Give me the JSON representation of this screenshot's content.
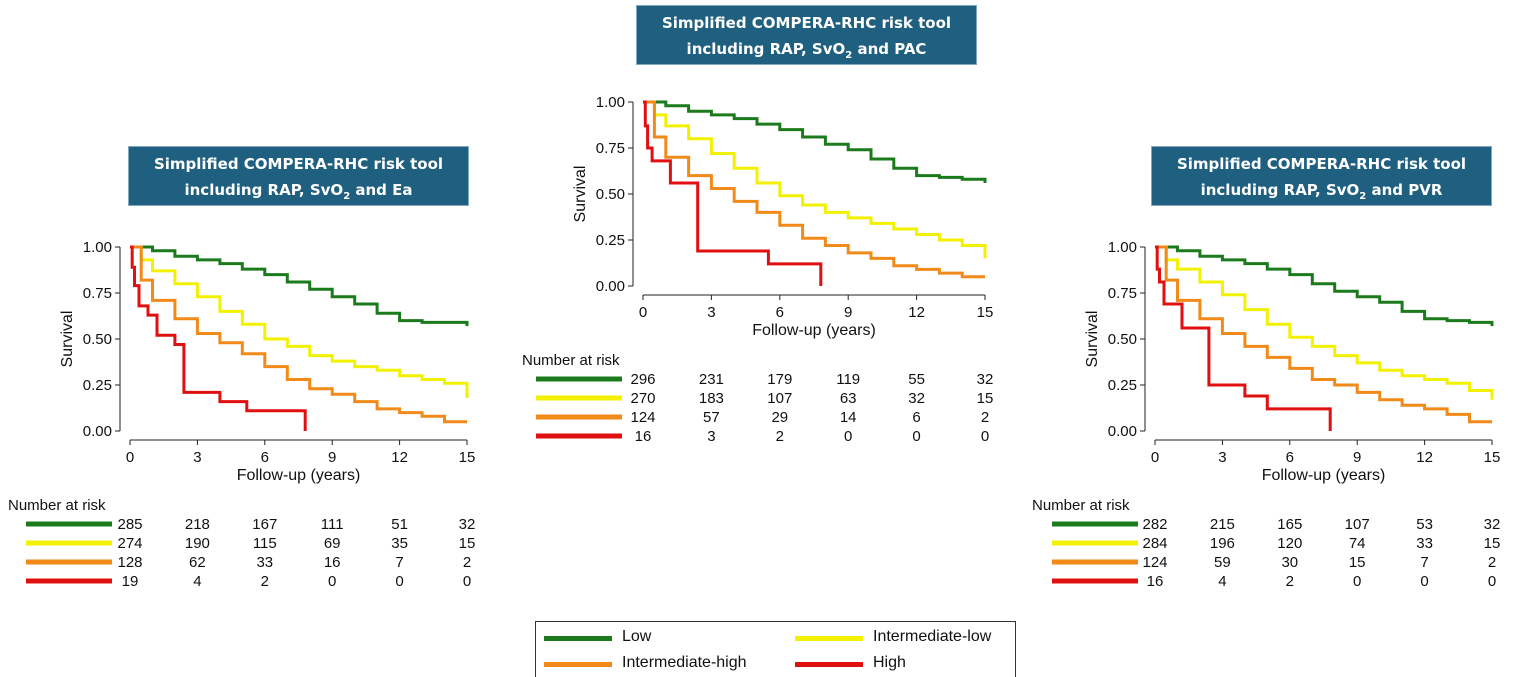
{
  "colors": {
    "Low": "#1b7a1b",
    "Intermediate-low": "#f2f200",
    "Intermediate-high": "#f28a1a",
    "High": "#e01010",
    "title_bg": "#1f5f80"
  },
  "legend": {
    "items": [
      "Low",
      "Intermediate-low",
      "Intermediate-high",
      "High"
    ]
  },
  "panels": [
    {
      "title_line1": "Simplified COMPERA-RHC risk tool",
      "title_line2_pre": "including RAP, SvO",
      "title_line2_sub": "2",
      "title_line2_post": " and Ea"
    },
    {
      "title_line1": "Simplified COMPERA-RHC risk tool",
      "title_line2_pre": "including RAP, SvO",
      "title_line2_sub": "2",
      "title_line2_post": " and PAC"
    },
    {
      "title_line1": "Simplified COMPERA-RHC risk tool",
      "title_line2_pre": "including RAP, SvO",
      "title_line2_sub": "2",
      "title_line2_post": " and PVR"
    }
  ],
  "chart_data": [
    {
      "type": "line",
      "title": "Simplified COMPERA-RHC risk tool including RAP, SvO2 and Ea",
      "xlabel": "Follow-up (years)",
      "ylabel": "Survival",
      "xlim": [
        0,
        15
      ],
      "ylim": [
        0,
        1
      ],
      "xticks": [
        0,
        3,
        6,
        9,
        12,
        15
      ],
      "yticks": [
        "0.00",
        "0.25",
        "0.50",
        "0.75",
        "1.00"
      ],
      "series": [
        {
          "name": "Low",
          "x": [
            0,
            1,
            2,
            3,
            4,
            5,
            6,
            7,
            8,
            9,
            10,
            11,
            12,
            13,
            14,
            15
          ],
          "y": [
            1.0,
            0.98,
            0.95,
            0.93,
            0.91,
            0.88,
            0.85,
            0.81,
            0.77,
            0.73,
            0.69,
            0.64,
            0.6,
            0.59,
            0.59,
            0.57
          ]
        },
        {
          "name": "Intermediate-low",
          "x": [
            0,
            0.5,
            1,
            2,
            3,
            4,
            5,
            6,
            7,
            8,
            9,
            10,
            11,
            12,
            13,
            14,
            15
          ],
          "y": [
            1.0,
            0.93,
            0.87,
            0.8,
            0.73,
            0.65,
            0.58,
            0.5,
            0.46,
            0.41,
            0.38,
            0.35,
            0.33,
            0.3,
            0.28,
            0.26,
            0.18
          ]
        },
        {
          "name": "Intermediate-high",
          "x": [
            0,
            0.5,
            1,
            2,
            3,
            4,
            5,
            6,
            7,
            8,
            9,
            10,
            11,
            12,
            13,
            14,
            15
          ],
          "y": [
            1.0,
            0.82,
            0.71,
            0.61,
            0.53,
            0.48,
            0.42,
            0.35,
            0.28,
            0.23,
            0.2,
            0.16,
            0.12,
            0.1,
            0.08,
            0.05,
            0.05
          ]
        },
        {
          "name": "High",
          "x": [
            0,
            0.1,
            0.2,
            0.4,
            0.8,
            1.2,
            2.0,
            2.4,
            3.0,
            4.0,
            5.2,
            6.0,
            7.8
          ],
          "y": [
            1.0,
            0.89,
            0.79,
            0.68,
            0.63,
            0.52,
            0.47,
            0.21,
            0.21,
            0.16,
            0.11,
            0.11,
            0.0
          ]
        }
      ],
      "risk_table": {
        "title": "Number at risk",
        "timepoints": [
          0,
          3,
          6,
          9,
          12,
          15
        ],
        "rows": [
          {
            "group": "Low",
            "values": [
              "285",
              "218",
              "167",
              "111",
              "51",
              "32"
            ]
          },
          {
            "group": "Intermediate-low",
            "values": [
              "274",
              "190",
              "115",
              "69",
              "35",
              "15"
            ]
          },
          {
            "group": "Intermediate-high",
            "values": [
              "128",
              "62",
              "33",
              "16",
              "7",
              "2"
            ]
          },
          {
            "group": "High",
            "values": [
              "19",
              "4",
              "2",
              "0",
              "0",
              "0"
            ]
          }
        ]
      }
    },
    {
      "type": "line",
      "title": "Simplified COMPERA-RHC risk tool including RAP, SvO2 and PAC",
      "xlabel": "Follow-up (years)",
      "ylabel": "Survival",
      "xlim": [
        0,
        15
      ],
      "ylim": [
        0,
        1
      ],
      "xticks": [
        0,
        3,
        6,
        9,
        12,
        15
      ],
      "yticks": [
        "0.00",
        "0.25",
        "0.50",
        "0.75",
        "1.00"
      ],
      "series": [
        {
          "name": "Low",
          "x": [
            0,
            1,
            2,
            3,
            4,
            5,
            6,
            7,
            8,
            9,
            10,
            11,
            12,
            13,
            14,
            15
          ],
          "y": [
            1.0,
            0.98,
            0.95,
            0.93,
            0.91,
            0.88,
            0.85,
            0.81,
            0.77,
            0.74,
            0.69,
            0.64,
            0.6,
            0.59,
            0.58,
            0.56
          ]
        },
        {
          "name": "Intermediate-low",
          "x": [
            0,
            0.5,
            1,
            2,
            3,
            4,
            5,
            6,
            7,
            8,
            9,
            10,
            11,
            12,
            13,
            14,
            15
          ],
          "y": [
            1.0,
            0.93,
            0.87,
            0.8,
            0.72,
            0.64,
            0.56,
            0.49,
            0.44,
            0.4,
            0.37,
            0.34,
            0.31,
            0.28,
            0.25,
            0.22,
            0.15
          ]
        },
        {
          "name": "Intermediate-high",
          "x": [
            0,
            0.5,
            1,
            2,
            3,
            4,
            5,
            6,
            7,
            8,
            9,
            10,
            11,
            12,
            13,
            14,
            15
          ],
          "y": [
            1.0,
            0.81,
            0.7,
            0.6,
            0.53,
            0.46,
            0.4,
            0.33,
            0.26,
            0.22,
            0.18,
            0.15,
            0.11,
            0.09,
            0.07,
            0.05,
            0.05
          ]
        },
        {
          "name": "High",
          "x": [
            0,
            0.1,
            0.2,
            0.4,
            1.2,
            1.8,
            2.4,
            3.0,
            4.5,
            5.5,
            6.5,
            7.8
          ],
          "y": [
            1.0,
            0.87,
            0.75,
            0.68,
            0.56,
            0.56,
            0.19,
            0.19,
            0.19,
            0.12,
            0.12,
            0.0
          ]
        }
      ],
      "risk_table": {
        "title": "Number at risk",
        "timepoints": [
          0,
          3,
          6,
          9,
          12,
          15
        ],
        "rows": [
          {
            "group": "Low",
            "values": [
              "296",
              "231",
              "179",
              "119",
              "55",
              "32"
            ]
          },
          {
            "group": "Intermediate-low",
            "values": [
              "270",
              "183",
              "107",
              "63",
              "32",
              "15"
            ]
          },
          {
            "group": "Intermediate-high",
            "values": [
              "124",
              "57",
              "29",
              "14",
              "6",
              "2"
            ]
          },
          {
            "group": "High",
            "values": [
              "16",
              "3",
              "2",
              "0",
              "0",
              "0"
            ]
          }
        ]
      }
    },
    {
      "type": "line",
      "title": "Simplified COMPERA-RHC risk tool including RAP, SvO2 and PVR",
      "xlabel": "Follow-up (years)",
      "ylabel": "Survival",
      "xlim": [
        0,
        15
      ],
      "ylim": [
        0,
        1
      ],
      "xticks": [
        0,
        3,
        6,
        9,
        12,
        15
      ],
      "yticks": [
        "0.00",
        "0.25",
        "0.50",
        "0.75",
        "1.00"
      ],
      "series": [
        {
          "name": "Low",
          "x": [
            0,
            1,
            2,
            3,
            4,
            5,
            6,
            7,
            8,
            9,
            10,
            11,
            12,
            13,
            14,
            15
          ],
          "y": [
            1.0,
            0.98,
            0.95,
            0.93,
            0.91,
            0.88,
            0.85,
            0.8,
            0.76,
            0.73,
            0.7,
            0.65,
            0.61,
            0.6,
            0.59,
            0.57
          ]
        },
        {
          "name": "Intermediate-low",
          "x": [
            0,
            0.5,
            1,
            2,
            3,
            4,
            5,
            6,
            7,
            8,
            9,
            10,
            11,
            12,
            13,
            14,
            15
          ],
          "y": [
            1.0,
            0.93,
            0.88,
            0.81,
            0.74,
            0.66,
            0.58,
            0.51,
            0.46,
            0.41,
            0.37,
            0.33,
            0.3,
            0.28,
            0.26,
            0.22,
            0.17
          ]
        },
        {
          "name": "Intermediate-high",
          "x": [
            0,
            0.5,
            1,
            2,
            3,
            4,
            5,
            6,
            7,
            8,
            9,
            10,
            11,
            12,
            13,
            14,
            15
          ],
          "y": [
            1.0,
            0.82,
            0.71,
            0.61,
            0.53,
            0.46,
            0.4,
            0.34,
            0.28,
            0.25,
            0.21,
            0.17,
            0.14,
            0.12,
            0.09,
            0.05,
            0.05
          ]
        },
        {
          "name": "High",
          "x": [
            0,
            0.1,
            0.2,
            0.4,
            1.2,
            2.0,
            2.4,
            3.0,
            4.0,
            5.0,
            6.0,
            7.8
          ],
          "y": [
            1.0,
            0.88,
            0.81,
            0.69,
            0.56,
            0.56,
            0.25,
            0.25,
            0.19,
            0.12,
            0.12,
            0.0
          ]
        }
      ],
      "risk_table": {
        "title": "Number at risk",
        "timepoints": [
          0,
          3,
          6,
          9,
          12,
          15
        ],
        "rows": [
          {
            "group": "Low",
            "values": [
              "282",
              "215",
              "165",
              "107",
              "53",
              "32"
            ]
          },
          {
            "group": "Intermediate-low",
            "values": [
              "284",
              "196",
              "120",
              "74",
              "33",
              "15"
            ]
          },
          {
            "group": "Intermediate-high",
            "values": [
              "124",
              "59",
              "30",
              "15",
              "7",
              "2"
            ]
          },
          {
            "group": "High",
            "values": [
              "16",
              "4",
              "2",
              "0",
              "0",
              "0"
            ]
          }
        ]
      }
    }
  ]
}
